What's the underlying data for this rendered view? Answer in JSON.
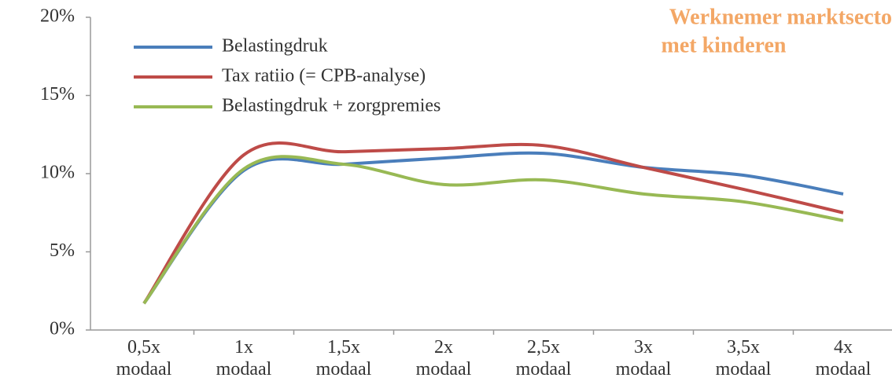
{
  "chart_data": {
    "type": "line",
    "annotation": [
      "Werknemer marktsecto",
      "met kinderen"
    ],
    "annotation_color": "#f3a766",
    "categories": [
      "0,5x\nmodaal",
      "1x\nmodaal",
      "1,5x\nmodaal",
      "2x\nmodaal",
      "2,5x\nmodaal",
      "3x\nmodaal",
      "3,5x\nmodaal",
      "4x\nmodaal"
    ],
    "series": [
      {
        "name": "Belastingdruk",
        "color": "#4a7ebb",
        "values": [
          1.7,
          10.2,
          10.6,
          11.0,
          11.3,
          10.4,
          9.9,
          8.7
        ]
      },
      {
        "name": "Tax ratiio (= CPB-analyse)",
        "color": "#be4b48",
        "values": [
          1.7,
          11.2,
          11.4,
          11.6,
          11.8,
          10.4,
          9.0,
          7.5
        ]
      },
      {
        "name": "Belastingdruk + zorgpremies",
        "color": "#98b954",
        "values": [
          1.7,
          10.3,
          10.6,
          9.3,
          9.6,
          8.7,
          8.2,
          7.0
        ]
      }
    ],
    "ylim": [
      0,
      20
    ],
    "yticks": [
      {
        "value": 0,
        "label": "0%"
      },
      {
        "value": 5,
        "label": "5%"
      },
      {
        "value": 10,
        "label": "10%"
      },
      {
        "value": 15,
        "label": "15%"
      },
      {
        "value": 20,
        "label": "20%"
      }
    ],
    "legend": "top-left"
  }
}
